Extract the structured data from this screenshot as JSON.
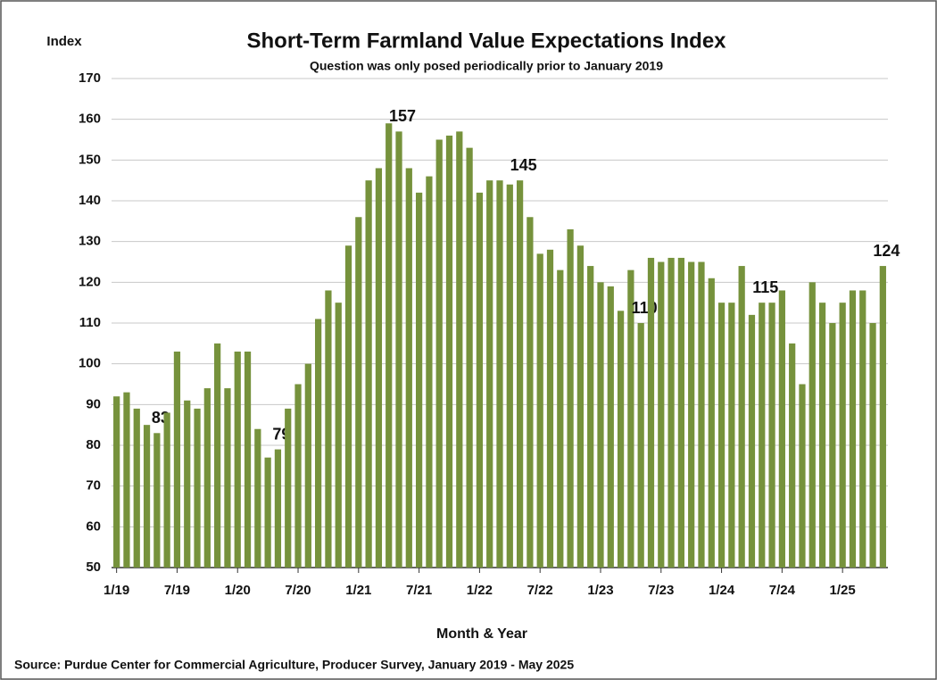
{
  "chart_data": {
    "type": "bar",
    "title": "Short-Term Farmland Value Expectations Index",
    "subtitle": "Question was only posed periodically prior to January 2019",
    "y_label": "Index",
    "x_label": "Month & Year",
    "source": "Source: Purdue Center for Commercial Agriculture, Producer Survey, January 2019 - May  2025",
    "color": "#76923c",
    "grid": true,
    "ylim": [
      50,
      170
    ],
    "yticks": [
      50,
      60,
      70,
      80,
      90,
      100,
      110,
      120,
      130,
      140,
      150,
      160,
      170
    ],
    "categories": [
      "1/19",
      null,
      null,
      null,
      null,
      null,
      "7/19",
      null,
      null,
      null,
      null,
      null,
      "1/20",
      null,
      null,
      null,
      null,
      null,
      "7/20",
      null,
      null,
      null,
      null,
      null,
      "1/21",
      null,
      null,
      null,
      null,
      null,
      "7/21",
      null,
      null,
      null,
      null,
      null,
      "1/22",
      null,
      null,
      null,
      null,
      null,
      "7/22",
      null,
      null,
      null,
      null,
      null,
      "1/23",
      null,
      null,
      null,
      null,
      null,
      "7/23",
      null,
      null,
      null,
      null,
      null,
      "1/24",
      null,
      null,
      null,
      null,
      null,
      "7/24",
      null,
      null,
      null,
      null,
      null,
      "1/25",
      null,
      null,
      null,
      null
    ],
    "values": [
      92,
      93,
      89,
      85,
      83,
      88,
      103,
      91,
      89,
      94,
      105,
      94,
      103,
      103,
      84,
      77,
      79,
      89,
      95,
      100,
      111,
      118,
      115,
      129,
      136,
      145,
      148,
      159,
      157,
      148,
      142,
      146,
      155,
      156,
      157,
      153,
      142,
      145,
      145,
      144,
      145,
      136,
      127,
      128,
      123,
      133,
      129,
      124,
      120,
      119,
      113,
      123,
      110,
      126,
      125,
      126,
      126,
      125,
      125,
      121,
      115,
      115,
      124,
      112,
      115,
      115,
      118,
      105,
      95,
      120,
      115,
      110,
      115,
      118,
      118,
      110,
      124
    ],
    "value_labels": [
      null,
      null,
      null,
      null,
      "83",
      null,
      null,
      null,
      null,
      null,
      null,
      null,
      null,
      null,
      null,
      null,
      "79",
      null,
      null,
      null,
      null,
      null,
      null,
      null,
      null,
      null,
      null,
      null,
      "157",
      null,
      null,
      null,
      null,
      null,
      null,
      null,
      null,
      null,
      null,
      null,
      "145",
      null,
      null,
      null,
      null,
      null,
      null,
      null,
      null,
      null,
      null,
      null,
      "110",
      null,
      null,
      null,
      null,
      null,
      null,
      null,
      null,
      null,
      null,
      null,
      "115",
      null,
      null,
      null,
      null,
      null,
      null,
      null,
      null,
      null,
      null,
      null,
      "124"
    ]
  }
}
